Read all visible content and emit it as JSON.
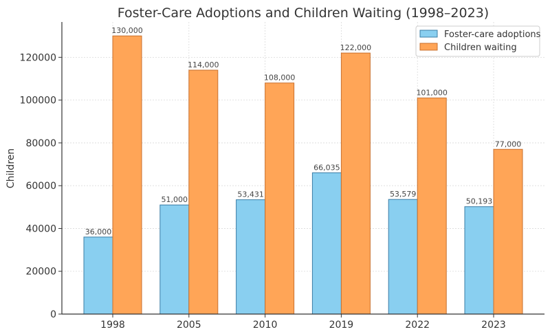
{
  "chart_data": {
    "type": "bar",
    "title": "Foster-Care Adoptions and Children Waiting (1998–2023)",
    "xlabel": "",
    "ylabel": "Children",
    "categories": [
      "1998",
      "2005",
      "2010",
      "2019",
      "2022",
      "2023"
    ],
    "series": [
      {
        "name": "Foster-care adoptions",
        "color": "#89CFF0",
        "edge_color": "#3A7CA5",
        "values": [
          36000,
          51000,
          53431,
          66035,
          53579,
          50193
        ],
        "labels": [
          "36,000",
          "51,000",
          "53,431",
          "66,035",
          "53,579",
          "50,193"
        ]
      },
      {
        "name": "Children waiting",
        "color": "#FFA557",
        "edge_color": "#C8702E",
        "values": [
          130000,
          114000,
          108000,
          122000,
          101000,
          77000
        ],
        "labels": [
          "130,000",
          "114,000",
          "108,000",
          "122,000",
          "101,000",
          "77,000"
        ]
      }
    ],
    "yticks": [
      0,
      20000,
      40000,
      60000,
      80000,
      100000,
      120000
    ],
    "ytick_labels": [
      "0",
      "20000",
      "40000",
      "60000",
      "80000",
      "100000",
      "120000"
    ],
    "ylim": [
      0,
      136500
    ],
    "grid": true,
    "legend_position": "top-right"
  }
}
